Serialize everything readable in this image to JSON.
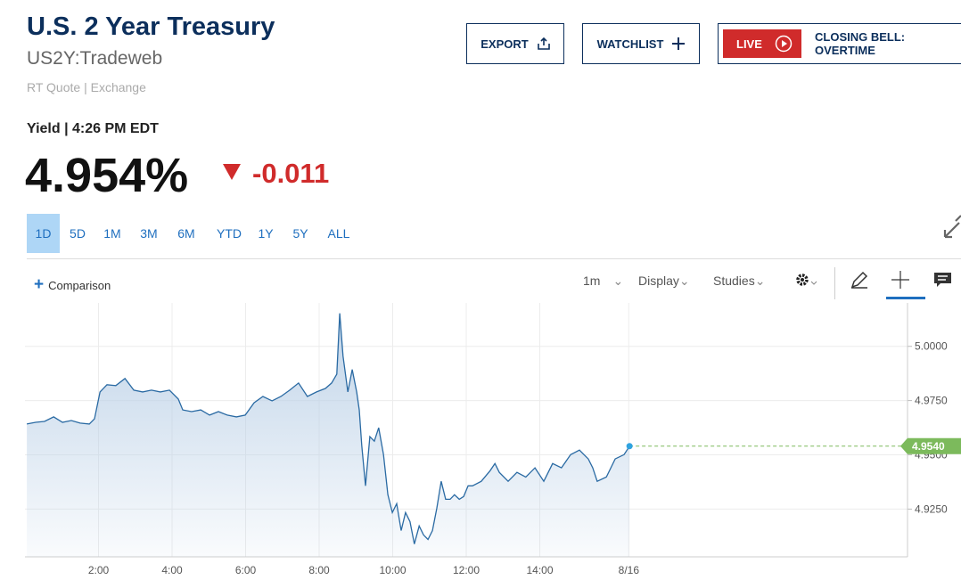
{
  "header": {
    "title": "U.S. 2 Year Treasury",
    "symbol": "US2Y:Tradeweb",
    "source": "RT Quote | Exchange",
    "quote_label": "Yield | 4:26 PM EDT",
    "price": "4.954%",
    "change": "-0.011"
  },
  "buttons": {
    "export": "EXPORT",
    "watchlist": "WATCHLIST",
    "live": "LIVE",
    "live_show": "CLOSING BELL: OVERTIME"
  },
  "range_tabs": {
    "items": [
      "1D",
      "5D",
      "1M",
      "3M",
      "6M",
      "YTD",
      "1Y",
      "5Y",
      "ALL"
    ],
    "active": "1D"
  },
  "toolbar": {
    "comparison": "Comparison",
    "interval": "1m",
    "display": "Display",
    "studies": "Studies"
  },
  "chart_data": {
    "type": "area",
    "x": [
      0.05,
      0.29,
      0.53,
      0.78,
      1.02,
      1.26,
      1.5,
      1.75,
      1.89,
      2.04,
      2.23,
      2.47,
      2.72,
      2.96,
      3.2,
      3.44,
      3.68,
      3.93,
      4.17,
      4.29,
      4.53,
      4.78,
      5.02,
      5.26,
      5.5,
      5.75,
      5.99,
      6.23,
      6.47,
      6.72,
      6.96,
      7.2,
      7.44,
      7.68,
      7.93,
      8.17,
      8.34,
      8.48,
      8.56,
      8.65,
      8.78,
      8.9,
      9.02,
      9.09,
      9.16,
      9.26,
      9.38,
      9.5,
      9.62,
      9.75,
      9.87,
      9.99,
      10.11,
      10.23,
      10.35,
      10.47,
      10.59,
      10.72,
      10.84,
      10.96,
      11.08,
      11.2,
      11.32,
      11.44,
      11.56,
      11.68,
      11.81,
      11.93,
      12.05,
      12.17,
      12.41,
      12.65,
      12.78,
      12.9,
      13.14,
      13.38,
      13.62,
      13.87,
      14.11,
      14.35,
      14.59,
      14.84,
      15.08,
      15.32,
      15.44,
      15.56,
      15.81,
      16.05,
      16.29,
      16.44
    ],
    "values": [
      4.9642,
      4.965,
      4.9654,
      4.9675,
      4.965,
      4.9658,
      4.9646,
      4.9642,
      4.9666,
      4.979,
      4.9823,
      4.9819,
      4.9852,
      4.9798,
      4.979,
      4.9798,
      4.979,
      4.9798,
      4.9757,
      4.9707,
      4.9699,
      4.9707,
      4.9683,
      4.9699,
      4.9683,
      4.9675,
      4.9683,
      4.974,
      4.9769,
      4.9749,
      4.9769,
      4.9798,
      4.9831,
      4.9769,
      4.979,
      4.9806,
      4.9831,
      4.9872,
      5.0152,
      4.9955,
      4.979,
      4.9893,
      4.979,
      4.9707,
      4.9543,
      4.9357,
      4.9584,
      4.9563,
      4.9625,
      4.9501,
      4.9316,
      4.9234,
      4.9275,
      4.9151,
      4.9234,
      4.9192,
      4.9089,
      4.9172,
      4.9131,
      4.911,
      4.9151,
      4.9254,
      4.9378,
      4.9295,
      4.9295,
      4.9316,
      4.9295,
      4.9308,
      4.9357,
      4.9357,
      4.9378,
      4.9427,
      4.946,
      4.9419,
      4.9378,
      4.9419,
      4.9398,
      4.944,
      4.9378,
      4.946,
      4.944,
      4.9501,
      4.9522,
      4.9481,
      4.944,
      4.9378,
      4.9398,
      4.9481,
      4.9501,
      4.954
    ],
    "color": "#2a6aa3",
    "fill_color": "#b9cfe6",
    "xlim": [
      0,
      24
    ],
    "xticks": [
      {
        "value": 2,
        "label": "2:00"
      },
      {
        "value": 4,
        "label": "4:00"
      },
      {
        "value": 6,
        "label": "6:00"
      },
      {
        "value": 8,
        "label": "8:00"
      },
      {
        "value": 10,
        "label": "10:00"
      },
      {
        "value": 12,
        "label": "12:00"
      },
      {
        "value": 14,
        "label": "14:00"
      },
      {
        "value": 16.42,
        "label": "8/16"
      }
    ],
    "ylim": [
      4.903,
      5.02
    ],
    "yticks": [
      {
        "value": 4.925,
        "label": "4.9250"
      },
      {
        "value": 4.95,
        "label": "4.9500"
      },
      {
        "value": 4.975,
        "label": "4.9750"
      },
      {
        "value": 5,
        "label": "5.0000"
      }
    ],
    "grid": true,
    "last_value": {
      "value": 4.954,
      "label": "4.9540",
      "color": "#7cba5c"
    }
  }
}
